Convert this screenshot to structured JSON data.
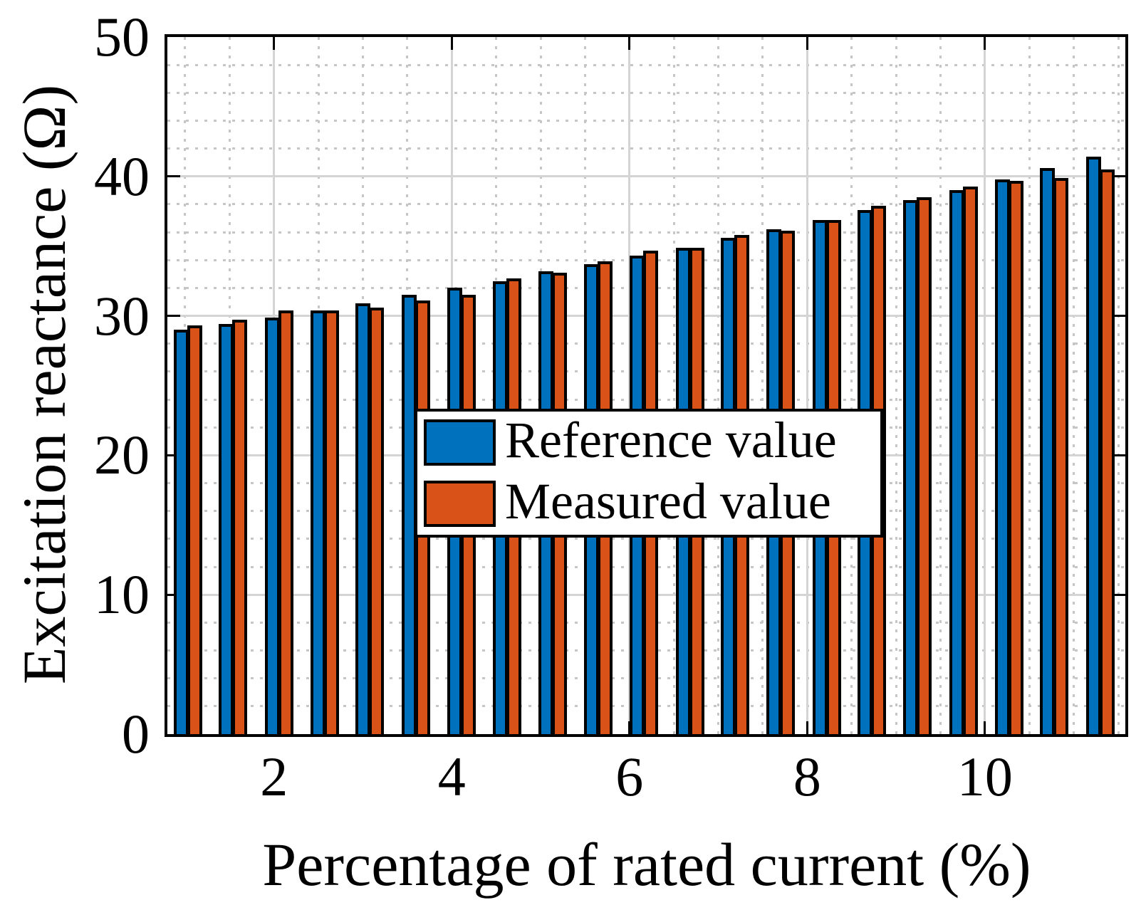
{
  "figure": {
    "background_color": "#ffffff",
    "axis_color": "#000000",
    "major_grid_color": "#d4d4d4",
    "minor_grid_color": "#c6c6c6"
  },
  "chart_data": {
    "type": "bar",
    "title": "",
    "xlabel": "Percentage of rated current (%)",
    "ylabel": "Excitation reactance (Ω)",
    "xlim": [
      0.8,
      11.58
    ],
    "ylim": [
      0,
      50
    ],
    "x_major_ticks": [
      2,
      4,
      6,
      8,
      10
    ],
    "x_tick_labels": [
      "2",
      "4",
      "6",
      "8",
      "10"
    ],
    "y_major_ticks": [
      0,
      10,
      20,
      30,
      40,
      50
    ],
    "y_tick_labels": [
      "0",
      "10",
      "20",
      "30",
      "40",
      "50"
    ],
    "x_minor_step": 0.5,
    "y_minor_step": 2,
    "grid": "on",
    "legend_position": "center",
    "x": [
      1.03,
      1.54,
      2.06,
      2.57,
      3.08,
      3.6,
      4.11,
      4.62,
      5.14,
      5.65,
      6.16,
      6.68,
      7.19,
      7.7,
      8.22,
      8.73,
      9.24,
      9.76,
      10.27,
      10.78,
      11.3
    ],
    "series": [
      {
        "name": "Reference value",
        "color": "#0072BD",
        "values": [
          29.0,
          29.4,
          29.9,
          30.4,
          30.9,
          31.5,
          32.0,
          32.5,
          33.2,
          33.7,
          34.3,
          34.9,
          35.6,
          36.2,
          36.9,
          37.6,
          38.3,
          39.0,
          39.8,
          40.6,
          41.4
        ]
      },
      {
        "name": "Measured value",
        "color": "#D95319",
        "values": [
          29.3,
          29.7,
          30.4,
          30.4,
          30.6,
          31.1,
          31.5,
          32.7,
          33.1,
          33.9,
          34.7,
          34.9,
          35.8,
          36.1,
          36.9,
          37.9,
          38.5,
          39.3,
          39.7,
          39.9,
          40.5
        ]
      }
    ]
  }
}
